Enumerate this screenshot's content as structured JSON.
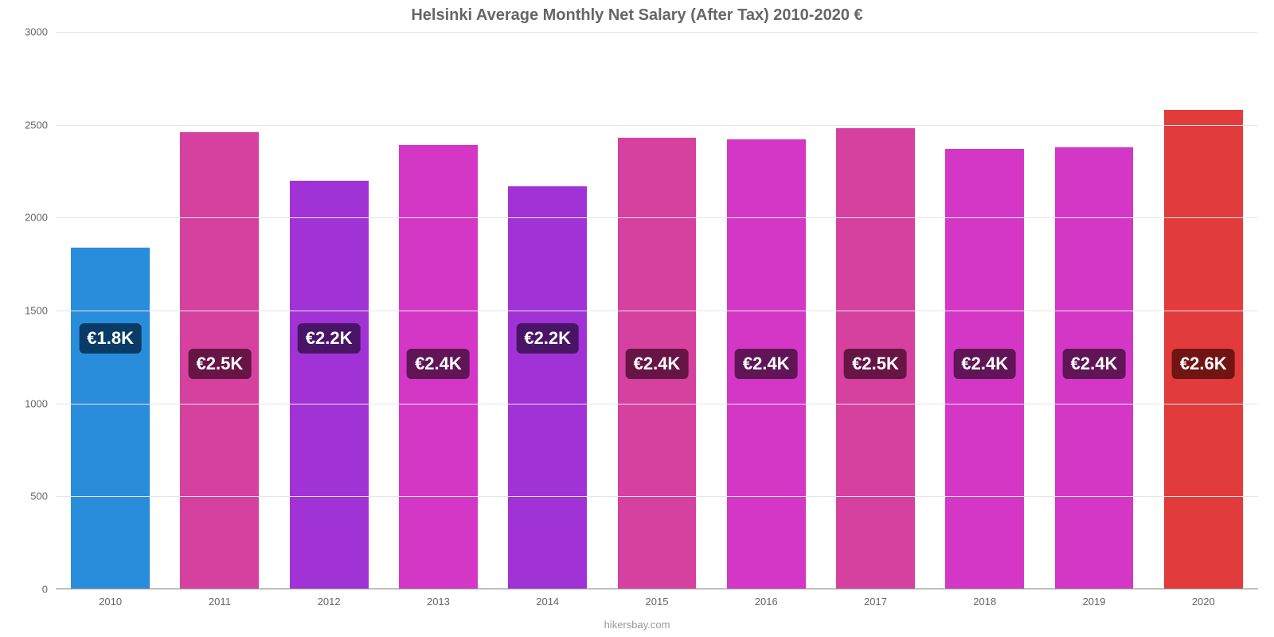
{
  "chart": {
    "type": "bar",
    "title": "Helsinki Average Monthly Net Salary (After Tax) 2010-2020 €",
    "title_fontsize": 20,
    "title_color": "#666666",
    "background_color": "#ffffff",
    "grid_color": "#e6e6e6",
    "baseline_color": "#999999",
    "axis_font_color": "#666666",
    "axis_fontsize": 13,
    "ylim_min": 0,
    "ylim_max": 3000,
    "ytick_step": 500,
    "yticks": [
      0,
      500,
      1000,
      1500,
      2000,
      2500,
      3000
    ],
    "bar_width_pct": 72,
    "label_fontsize": 22,
    "label_bg_alpha": 0.35,
    "label_position_value": 1130,
    "label_position_value_low": 1270,
    "attribution": "hikersbay.com",
    "categories": [
      "2010",
      "2011",
      "2012",
      "2013",
      "2014",
      "2015",
      "2016",
      "2017",
      "2018",
      "2019",
      "2020"
    ],
    "values": [
      1840,
      2460,
      2200,
      2390,
      2170,
      2430,
      2420,
      2480,
      2370,
      2380,
      2580
    ],
    "value_labels": [
      "€1.8K",
      "€2.5K",
      "€2.2K",
      "€2.4K",
      "€2.2K",
      "€2.4K",
      "€2.4K",
      "€2.5K",
      "€2.4K",
      "€2.4K",
      "€2.6K"
    ],
    "bar_colors": [
      "#2a8ddb",
      "#d6409f",
      "#a032d6",
      "#d437c6",
      "#a032d6",
      "#d6409f",
      "#d437c6",
      "#d6409f",
      "#d437c6",
      "#d437c6",
      "#e23b3b"
    ],
    "label_bg_colors": [
      "#0a3a66",
      "#661545",
      "#4a1466",
      "#5f1556",
      "#4a1466",
      "#661545",
      "#5f1556",
      "#661545",
      "#5f1556",
      "#5f1556",
      "#701414"
    ]
  }
}
